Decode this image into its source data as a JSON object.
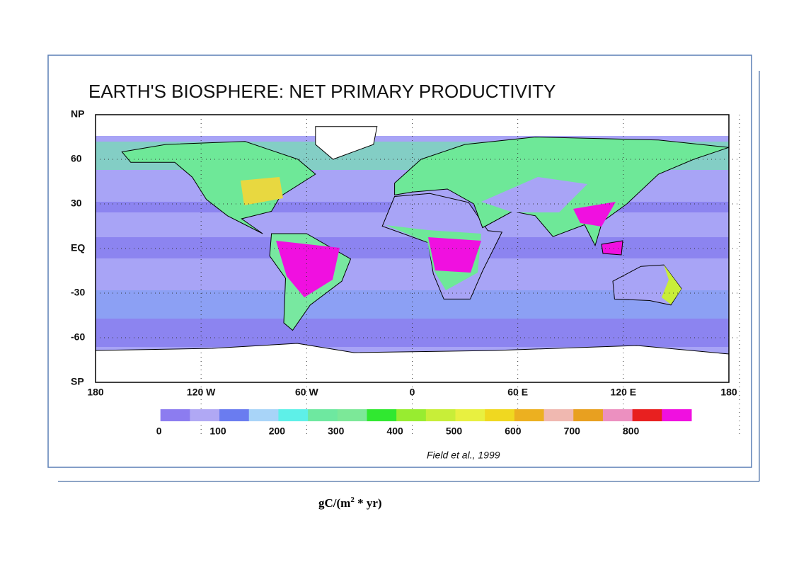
{
  "title": "EARTH'S BIOSPHERE: NET PRIMARY PRODUCTIVITY",
  "latitude_labels": [
    "NP",
    "60",
    "30",
    "EQ",
    "-30",
    "-60",
    "SP"
  ],
  "longitude_labels": [
    "180",
    "120 W",
    "60 W",
    "0",
    "60 E",
    "120 E",
    "180"
  ],
  "legend": {
    "colors": [
      "#ffffff",
      "#8c7cf0",
      "#b0a8f4",
      "#6a7cf0",
      "#a8d4f8",
      "#5ef0e8",
      "#6ee8a0",
      "#7ce898",
      "#30e830",
      "#98ec30",
      "#c8ee38",
      "#e8f040",
      "#f0d820",
      "#ecb020",
      "#f0b8b0",
      "#e8a020",
      "#ec90c0",
      "#e82020",
      "#f010e0"
    ],
    "labels": [
      "0",
      "100",
      "200",
      "300",
      "400",
      "500",
      "600",
      "700",
      "800"
    ]
  },
  "citation": "Field et al., 1999",
  "unit": {
    "prefix": "gC/(m",
    "superscript": "2",
    "suffix": " * yr)"
  }
}
